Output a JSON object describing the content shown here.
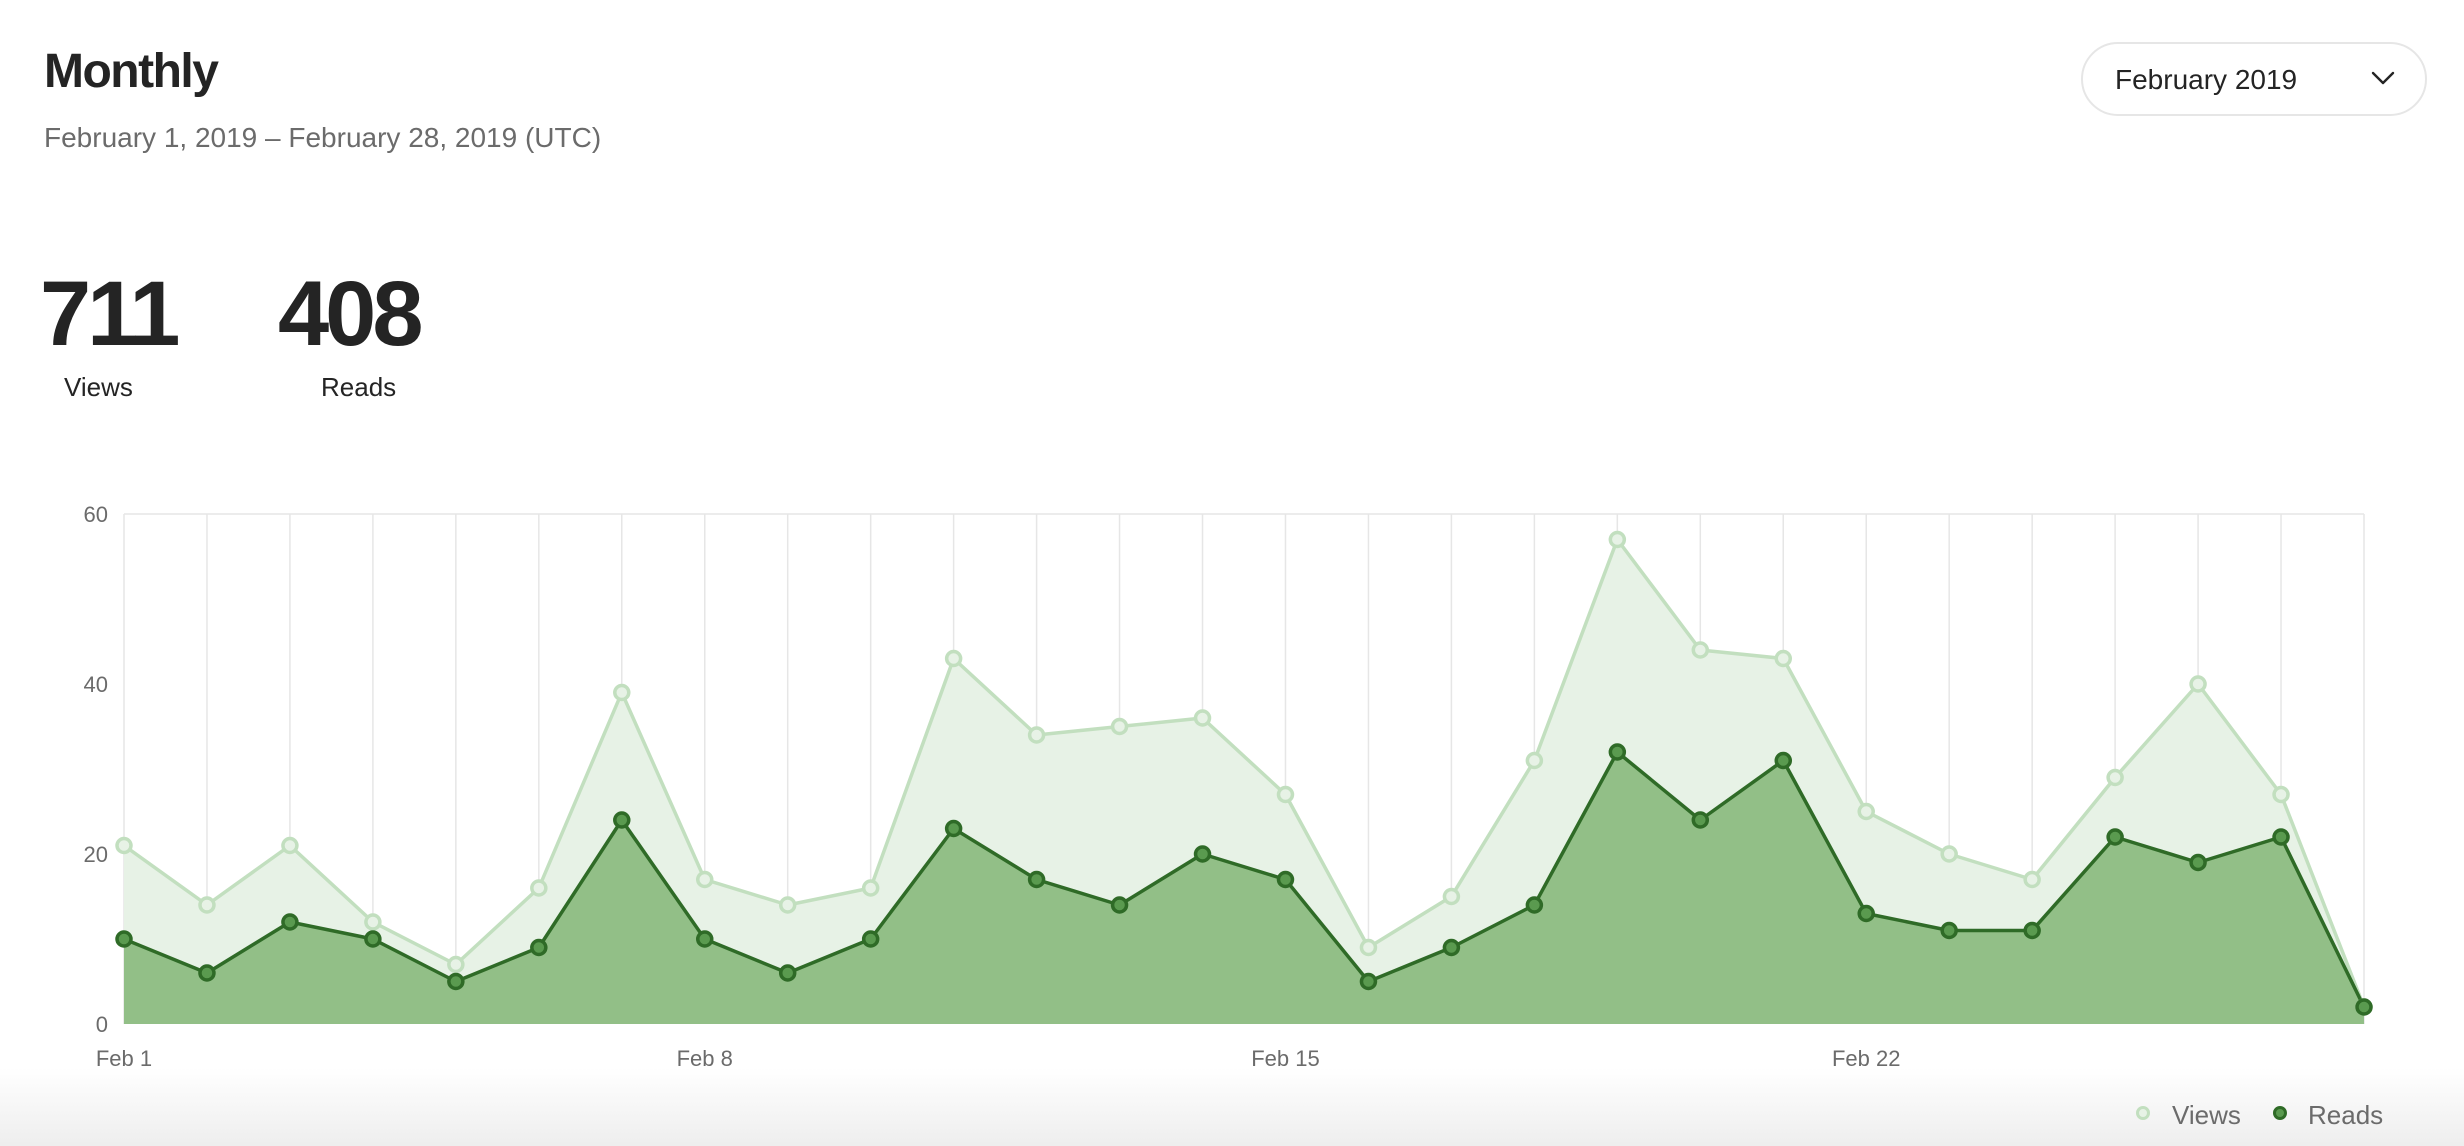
{
  "header": {
    "title": "Monthly",
    "date_range": "February 1, 2019 – February 28, 2019 (UTC)",
    "month_select": {
      "value": "February 2019",
      "icon": "chevron-down-icon"
    }
  },
  "stats": {
    "views": {
      "value": "711",
      "label": "Views"
    },
    "reads": {
      "value": "408",
      "label": "Reads"
    }
  },
  "legend": {
    "views": "Views",
    "reads": "Reads"
  },
  "colors": {
    "views_line": "#c2dfbf",
    "views_fill": "#e7f2e6",
    "reads_line": "#2f6b27",
    "reads_fill": "#92bf87",
    "reads_point": "#5a9a4f",
    "grid": "#e6e6e6",
    "text_muted": "#6b6b6b"
  },
  "chart_data": {
    "type": "area",
    "x": [
      "Feb 1",
      "Feb 2",
      "Feb 3",
      "Feb 4",
      "Feb 5",
      "Feb 6",
      "Feb 7",
      "Feb 8",
      "Feb 9",
      "Feb 10",
      "Feb 11",
      "Feb 12",
      "Feb 13",
      "Feb 14",
      "Feb 15",
      "Feb 16",
      "Feb 17",
      "Feb 18",
      "Feb 19",
      "Feb 20",
      "Feb 21",
      "Feb 22",
      "Feb 23",
      "Feb 24",
      "Feb 25",
      "Feb 26",
      "Feb 27",
      "Feb 28"
    ],
    "x_tick_labels": [
      "Feb 1",
      "Feb 8",
      "Feb 15",
      "Feb 22"
    ],
    "series": [
      {
        "name": "Views",
        "values": [
          21,
          14,
          21,
          12,
          7,
          16,
          39,
          17,
          14,
          16,
          43,
          34,
          35,
          36,
          27,
          9,
          15,
          31,
          57,
          44,
          43,
          25,
          20,
          17,
          29,
          40,
          27,
          2
        ]
      },
      {
        "name": "Reads",
        "values": [
          10,
          6,
          12,
          10,
          5,
          9,
          24,
          10,
          6,
          10,
          23,
          17,
          14,
          20,
          17,
          5,
          9,
          14,
          32,
          24,
          31,
          13,
          11,
          11,
          22,
          19,
          22,
          2
        ]
      }
    ],
    "ylim": [
      0,
      60
    ],
    "y_ticks": [
      0,
      20,
      40,
      60
    ],
    "grid": "vertical",
    "legend_position": "bottom-right"
  }
}
